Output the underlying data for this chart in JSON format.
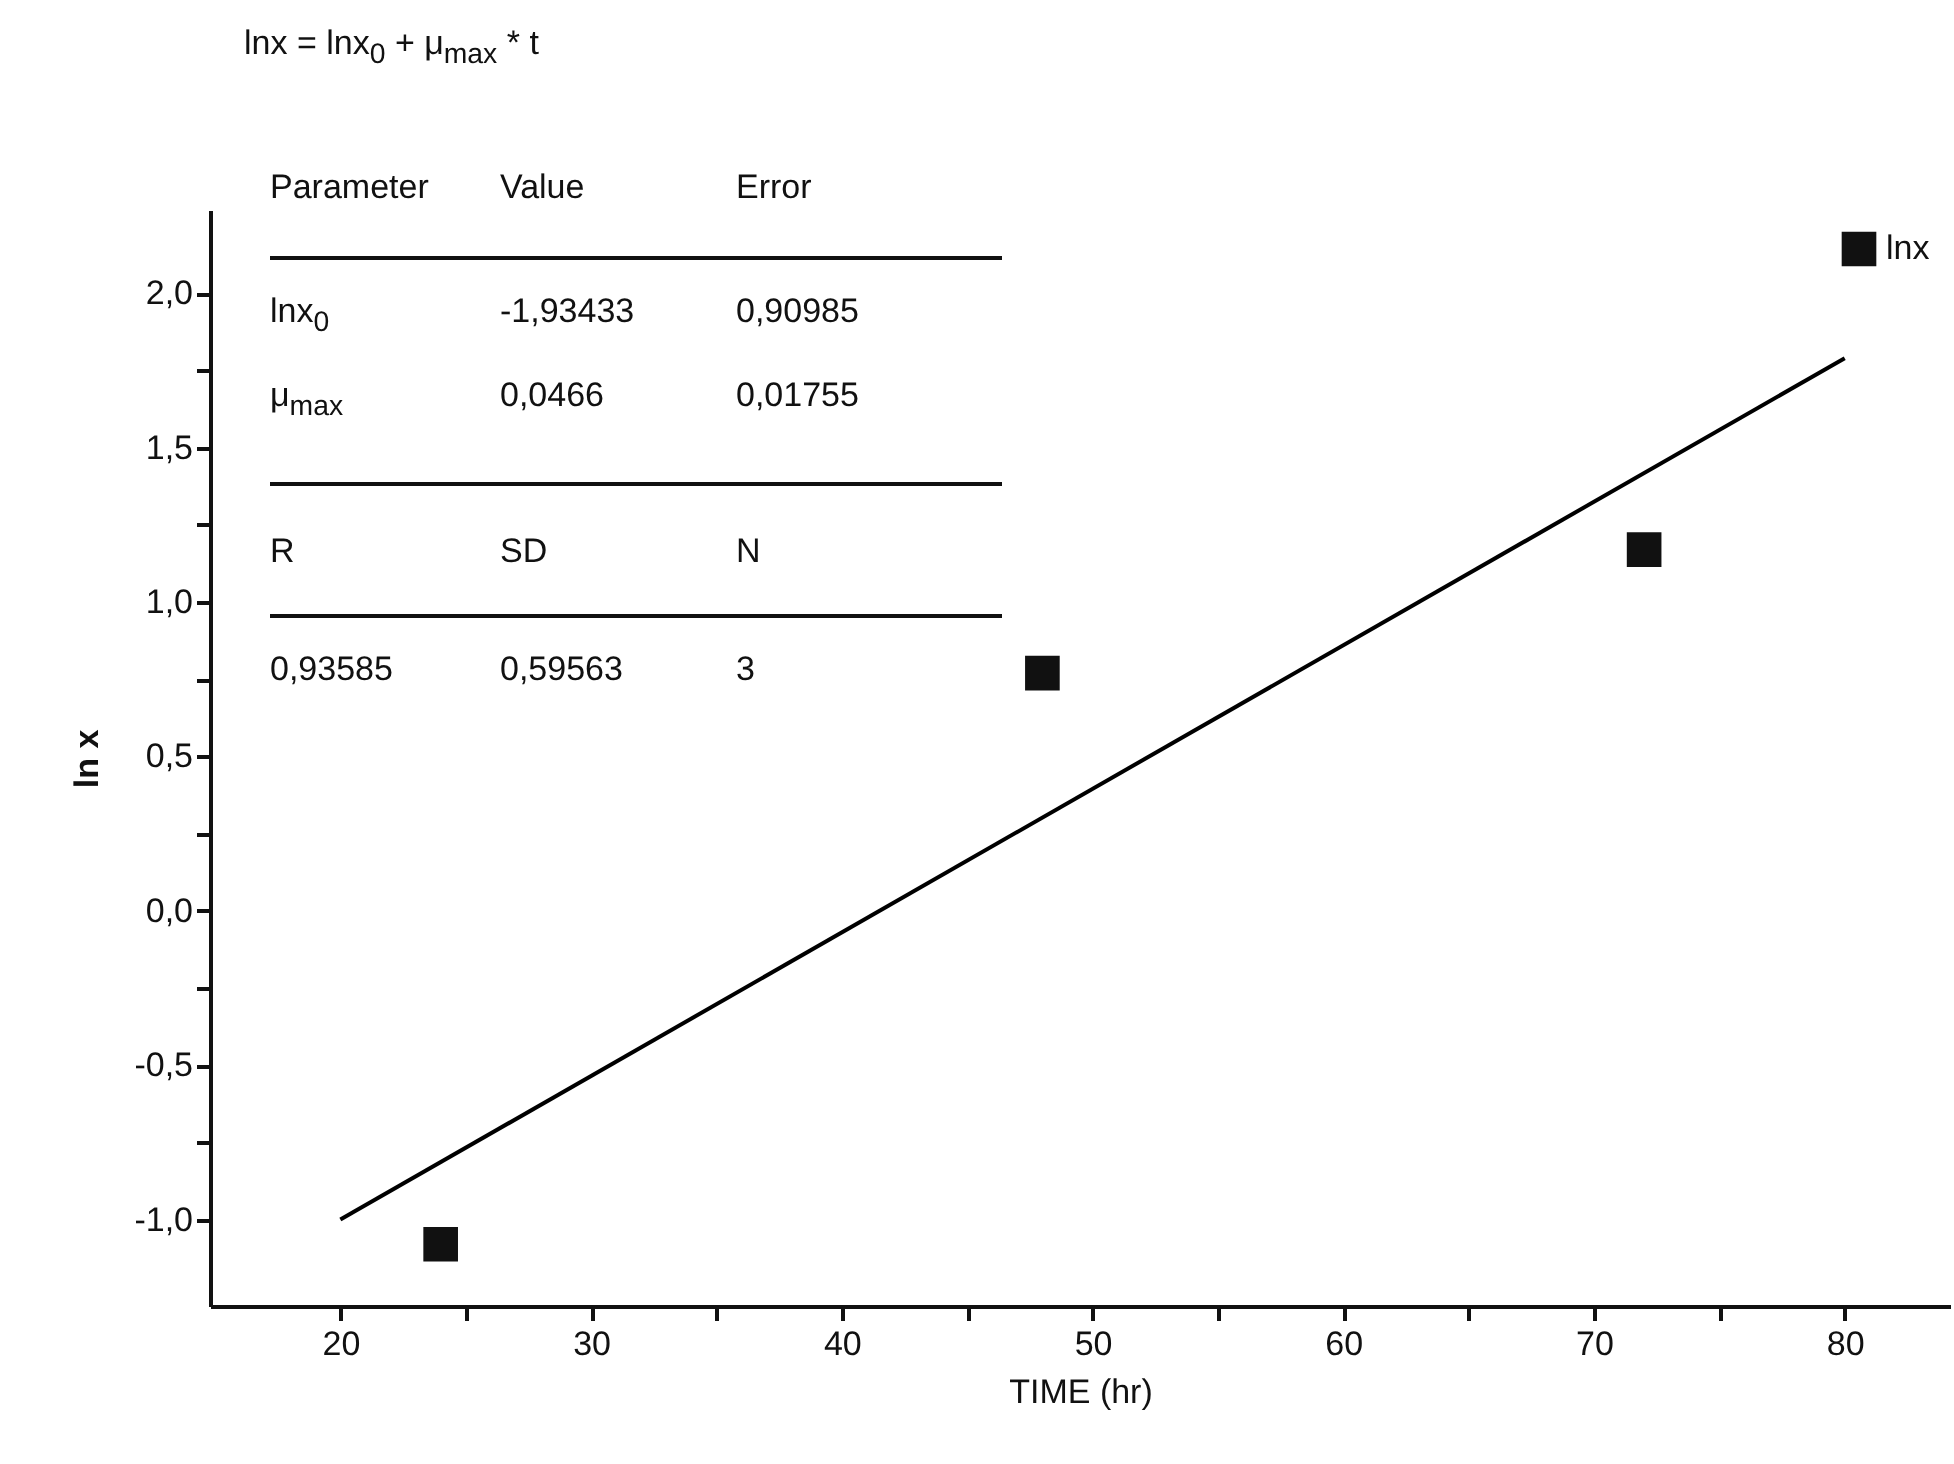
{
  "chart_data": {
    "type": "scatter",
    "title": "lnx = lnx$_{0}$ + μ$_{max}$ * t",
    "xlabel": "TIME (hr)",
    "ylabel": "ln x",
    "xlim": [
      14.8,
      84.2
    ],
    "ylim": [
      -1.28,
      2.27
    ],
    "xticks": [
      {
        "value": 20,
        "label": "20"
      },
      {
        "value": 25,
        "label": null
      },
      {
        "value": 30,
        "label": "30"
      },
      {
        "value": 35,
        "label": null
      },
      {
        "value": 40,
        "label": "40"
      },
      {
        "value": 45,
        "label": null
      },
      {
        "value": 50,
        "label": "50"
      },
      {
        "value": 55,
        "label": null
      },
      {
        "value": 60,
        "label": "60"
      },
      {
        "value": 65,
        "label": null
      },
      {
        "value": 70,
        "label": "70"
      },
      {
        "value": 75,
        "label": null
      },
      {
        "value": 80,
        "label": "80"
      }
    ],
    "yticks": [
      {
        "value": -1,
        "label": "-1,0"
      },
      {
        "value": -0.75,
        "label": null
      },
      {
        "value": -0.5,
        "label": "-0,5"
      },
      {
        "value": -0.25,
        "label": null
      },
      {
        "value": 0,
        "label": "0,0"
      },
      {
        "value": 0.25,
        "label": null
      },
      {
        "value": 0.5,
        "label": "0,5"
      },
      {
        "value": 0.75,
        "label": null
      },
      {
        "value": 1,
        "label": "1,0"
      },
      {
        "value": 1.25,
        "label": null
      },
      {
        "value": 1.5,
        "label": "1,5"
      },
      {
        "value": 1.75,
        "label": null
      },
      {
        "value": 2,
        "label": "2,0"
      }
    ],
    "legend": "top right",
    "series": [
      {
        "name": "lnx",
        "marker": "square",
        "color": "#111111",
        "x": [
          24,
          48,
          72
        ],
        "values": [
          -1.08,
          0.77,
          1.17
        ]
      },
      {
        "type": "line",
        "color": "#000000",
        "x": [
          20,
          80
        ],
        "values": [
          -1.0,
          1.79
        ]
      }
    ],
    "annotations": [
      "Parameter",
      "Value",
      "Error",
      "lnx$_{0}$",
      "-1,93433",
      "0,90985",
      "μ$_{max}$",
      "0,0466",
      "0,01755",
      "R",
      "SD",
      "N",
      "0,93585",
      "0,59563",
      "3"
    ]
  }
}
